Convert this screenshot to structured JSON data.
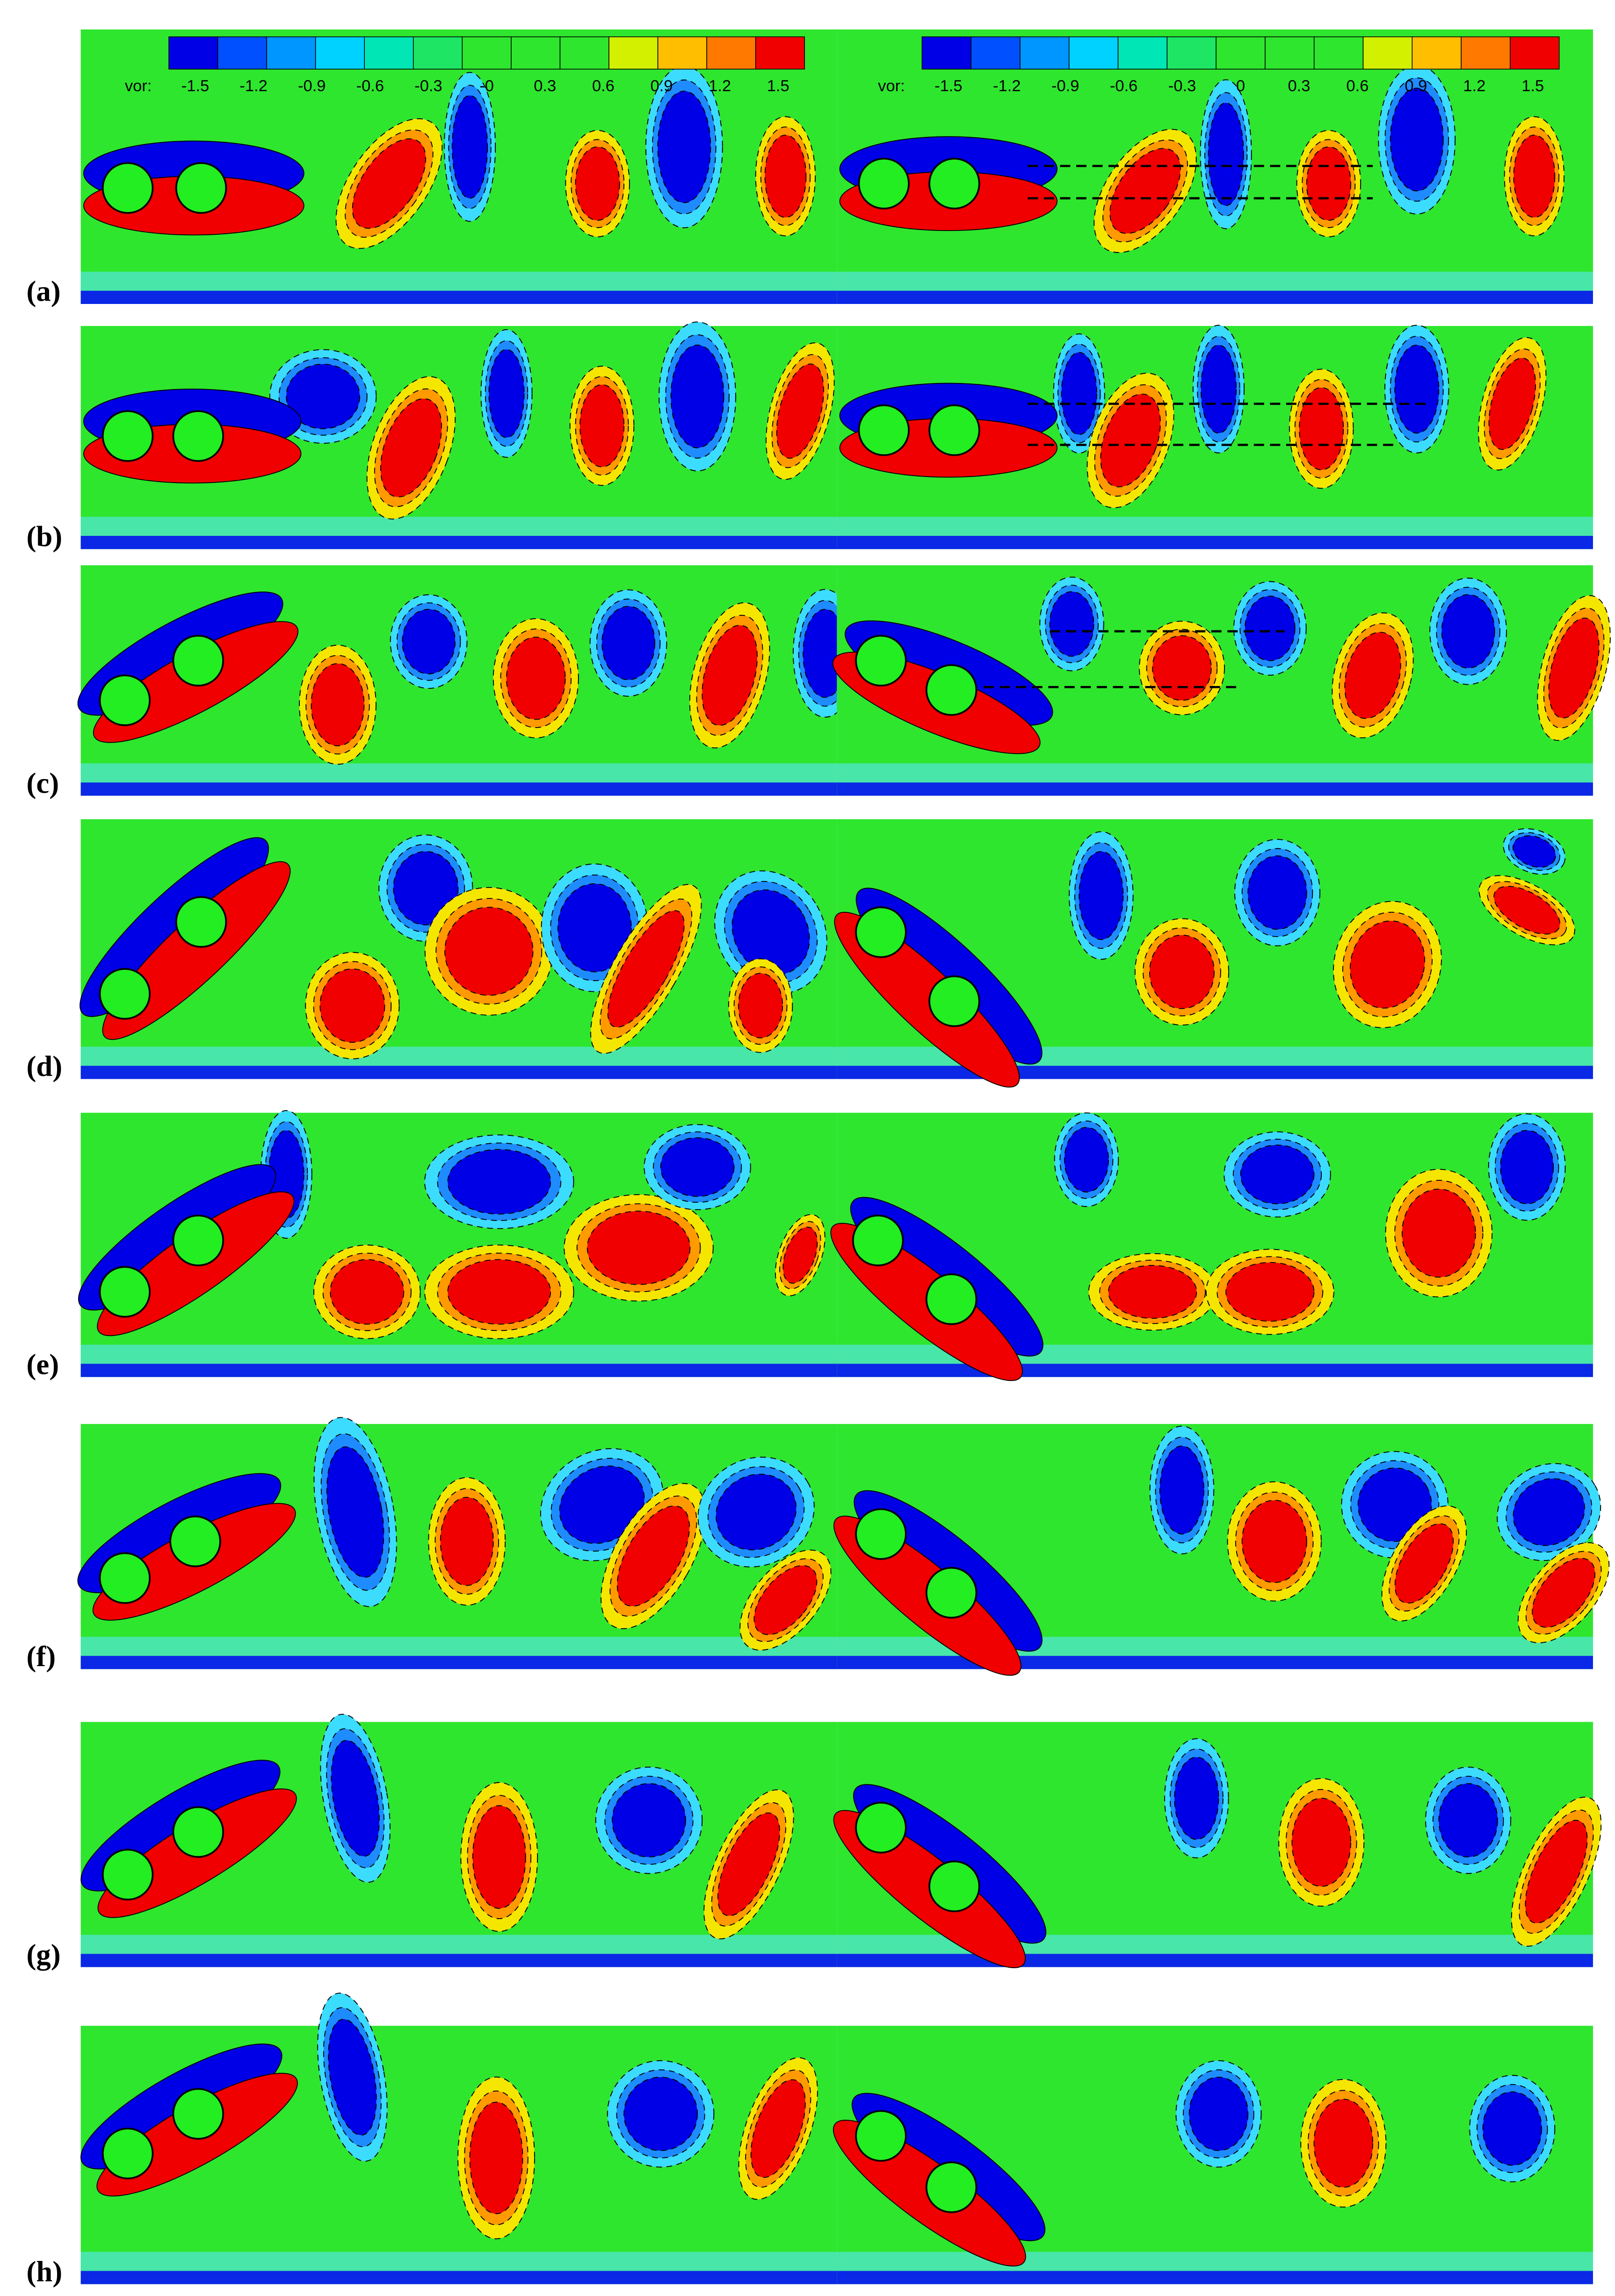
{
  "colorbars": [
    {
      "label": "vor:",
      "ticks": [
        "-1.5",
        "-1.2",
        "-0.9",
        "-0.6",
        "-0.3",
        "-0",
        "0.3",
        "0.6",
        "0.9",
        "1.2",
        "1.5"
      ]
    },
    {
      "label": "vor:",
      "ticks": [
        "-1.5",
        "-1.2",
        "-0.9",
        "-0.6",
        "-0.3",
        "0",
        "0.3",
        "0.6",
        "0.9",
        "1.2",
        "1.5"
      ]
    }
  ],
  "panels": [
    {
      "label": "(a)"
    },
    {
      "label": "(b)"
    },
    {
      "label": "(c)"
    },
    {
      "label": "(d)"
    },
    {
      "label": "(e)"
    },
    {
      "label": "(f)"
    },
    {
      "label": "(g)"
    },
    {
      "label": "(h)"
    }
  ]
}
